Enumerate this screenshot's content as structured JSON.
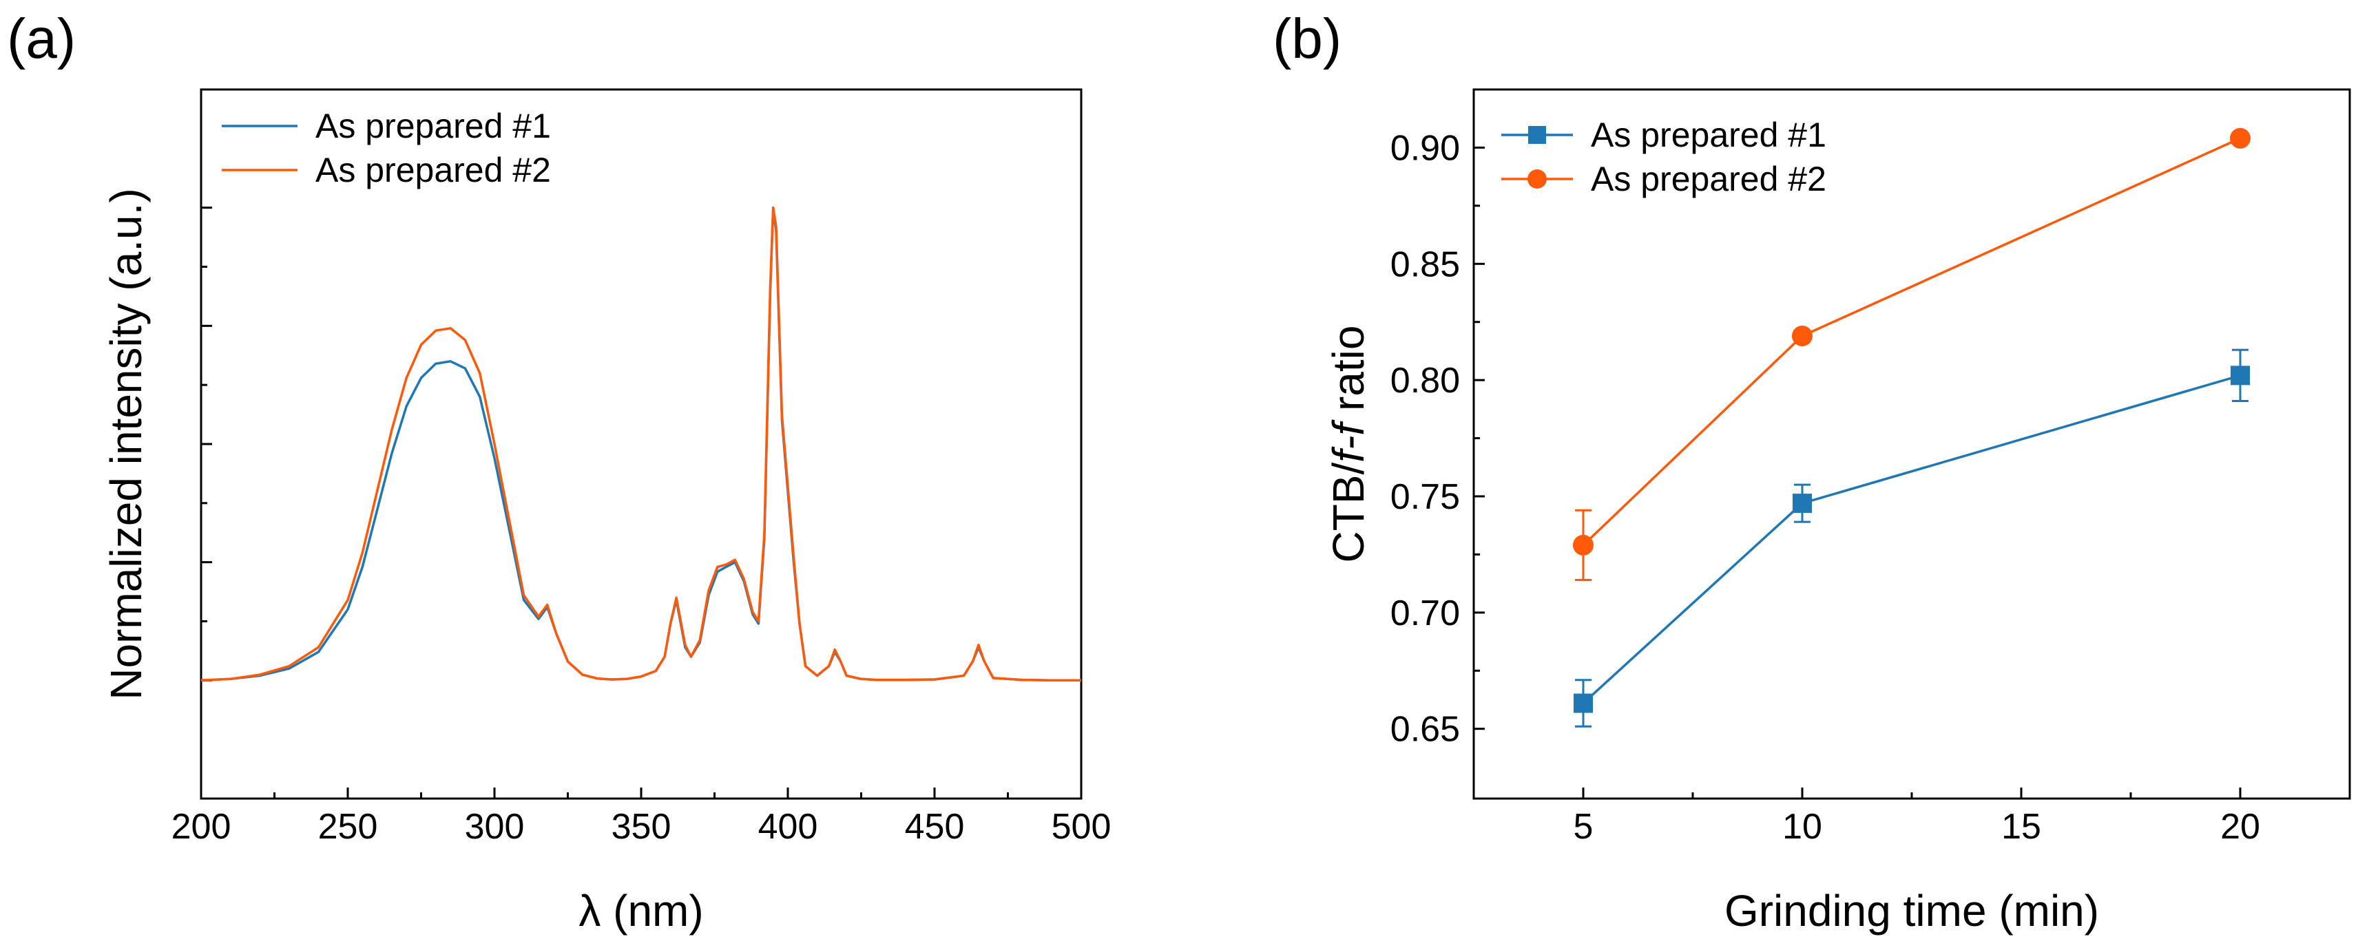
{
  "panels": {
    "a_label": "(a)",
    "b_label": "(b)"
  },
  "colors": {
    "series1": "#1f77b4",
    "series2": "#ff5a0a",
    "axis": "#000000"
  },
  "chart_data": [
    {
      "type": "line",
      "panel": "(a)",
      "xlabel": "λ (nm)",
      "ylabel": "Normalized intensity (a.u.)",
      "xlim": [
        200,
        500
      ],
      "ylim": [
        -0.25,
        1.25
      ],
      "xticks": [
        200,
        250,
        300,
        350,
        400,
        450,
        500
      ],
      "xtick_labels": [
        "200",
        "250",
        "300",
        "350",
        "400",
        "450",
        "500"
      ],
      "yticks": [
        0,
        0.25,
        0.5,
        0.75,
        1.0
      ],
      "ytick_labels": [],
      "legend": "top-left",
      "series": [
        {
          "name": "As prepared #1",
          "color": "#1f77b4",
          "x": [
            200,
            210,
            220,
            230,
            240,
            250,
            255,
            260,
            265,
            270,
            275,
            280,
            285,
            290,
            295,
            300,
            305,
            310,
            315,
            318,
            321,
            325,
            330,
            335,
            340,
            345,
            350,
            355,
            358,
            360,
            362,
            365,
            367,
            370,
            373,
            376,
            379,
            382,
            385,
            388,
            390,
            392,
            394,
            395,
            396,
            398,
            400,
            402,
            404,
            406,
            410,
            414,
            416,
            418,
            420,
            425,
            430,
            440,
            450,
            460,
            463,
            465,
            467,
            470,
            480,
            490,
            500
          ],
          "y": [
            0,
            0.003,
            0.01,
            0.025,
            0.06,
            0.15,
            0.24,
            0.36,
            0.48,
            0.58,
            0.64,
            0.67,
            0.675,
            0.66,
            0.6,
            0.47,
            0.32,
            0.17,
            0.13,
            0.155,
            0.1,
            0.04,
            0.012,
            0.004,
            0.002,
            0.003,
            0.008,
            0.02,
            0.05,
            0.12,
            0.17,
            0.07,
            0.05,
            0.08,
            0.18,
            0.23,
            0.24,
            0.25,
            0.21,
            0.14,
            0.12,
            0.3,
            0.82,
            1.0,
            0.95,
            0.55,
            0.4,
            0.25,
            0.12,
            0.03,
            0.01,
            0.03,
            0.06,
            0.04,
            0.01,
            0.003,
            0.001,
            0.001,
            0.002,
            0.01,
            0.04,
            0.07,
            0.04,
            0.005,
            0.001,
            0.0,
            0.0
          ]
        },
        {
          "name": "As prepared #2",
          "color": "#ff5a0a",
          "x": [
            200,
            210,
            220,
            230,
            240,
            250,
            255,
            260,
            265,
            270,
            275,
            280,
            285,
            290,
            295,
            300,
            305,
            310,
            315,
            318,
            321,
            325,
            330,
            335,
            340,
            345,
            350,
            355,
            358,
            360,
            362,
            365,
            367,
            370,
            373,
            376,
            379,
            382,
            385,
            388,
            390,
            392,
            394,
            395,
            396,
            398,
            400,
            402,
            404,
            406,
            410,
            414,
            416,
            418,
            420,
            425,
            430,
            440,
            450,
            460,
            463,
            465,
            467,
            470,
            480,
            490,
            500
          ],
          "y": [
            0,
            0.003,
            0.012,
            0.03,
            0.07,
            0.17,
            0.27,
            0.4,
            0.53,
            0.64,
            0.71,
            0.74,
            0.745,
            0.72,
            0.65,
            0.5,
            0.34,
            0.18,
            0.135,
            0.16,
            0.1,
            0.04,
            0.012,
            0.004,
            0.002,
            0.003,
            0.008,
            0.02,
            0.05,
            0.12,
            0.175,
            0.075,
            0.05,
            0.085,
            0.19,
            0.24,
            0.245,
            0.255,
            0.215,
            0.145,
            0.125,
            0.31,
            0.83,
            1.0,
            0.96,
            0.56,
            0.41,
            0.26,
            0.12,
            0.03,
            0.01,
            0.03,
            0.065,
            0.04,
            0.01,
            0.003,
            0.001,
            0.001,
            0.002,
            0.01,
            0.04,
            0.075,
            0.04,
            0.005,
            0.001,
            0.0,
            0.0
          ]
        }
      ]
    },
    {
      "type": "line",
      "panel": "(b)",
      "xlabel": "Grinding time (min)",
      "ylabel_parts": [
        "CTB/",
        "f-f",
        " ratio"
      ],
      "xlim": [
        2.5,
        22.5
      ],
      "ylim": [
        0.62,
        0.925
      ],
      "xticks": [
        5,
        10,
        15,
        20
      ],
      "xtick_labels": [
        "5",
        "10",
        "15",
        "20"
      ],
      "yticks": [
        0.65,
        0.7,
        0.75,
        0.8,
        0.85,
        0.9
      ],
      "ytick_labels": [
        "0.65",
        "0.70",
        "0.75",
        "0.80",
        "0.85",
        "0.90"
      ],
      "legend": "top-left",
      "series": [
        {
          "name": "As prepared #1",
          "color": "#1f77b4",
          "marker": "square",
          "x": [
            5,
            10,
            20
          ],
          "y": [
            0.661,
            0.747,
            0.802
          ],
          "err": [
            0.01,
            0.008,
            0.011
          ]
        },
        {
          "name": "As prepared #2",
          "color": "#ff5a0a",
          "marker": "circle",
          "x": [
            5,
            10,
            20
          ],
          "y": [
            0.729,
            0.819,
            0.904
          ],
          "err": [
            0.015,
            0.0,
            0.0
          ]
        }
      ]
    }
  ]
}
